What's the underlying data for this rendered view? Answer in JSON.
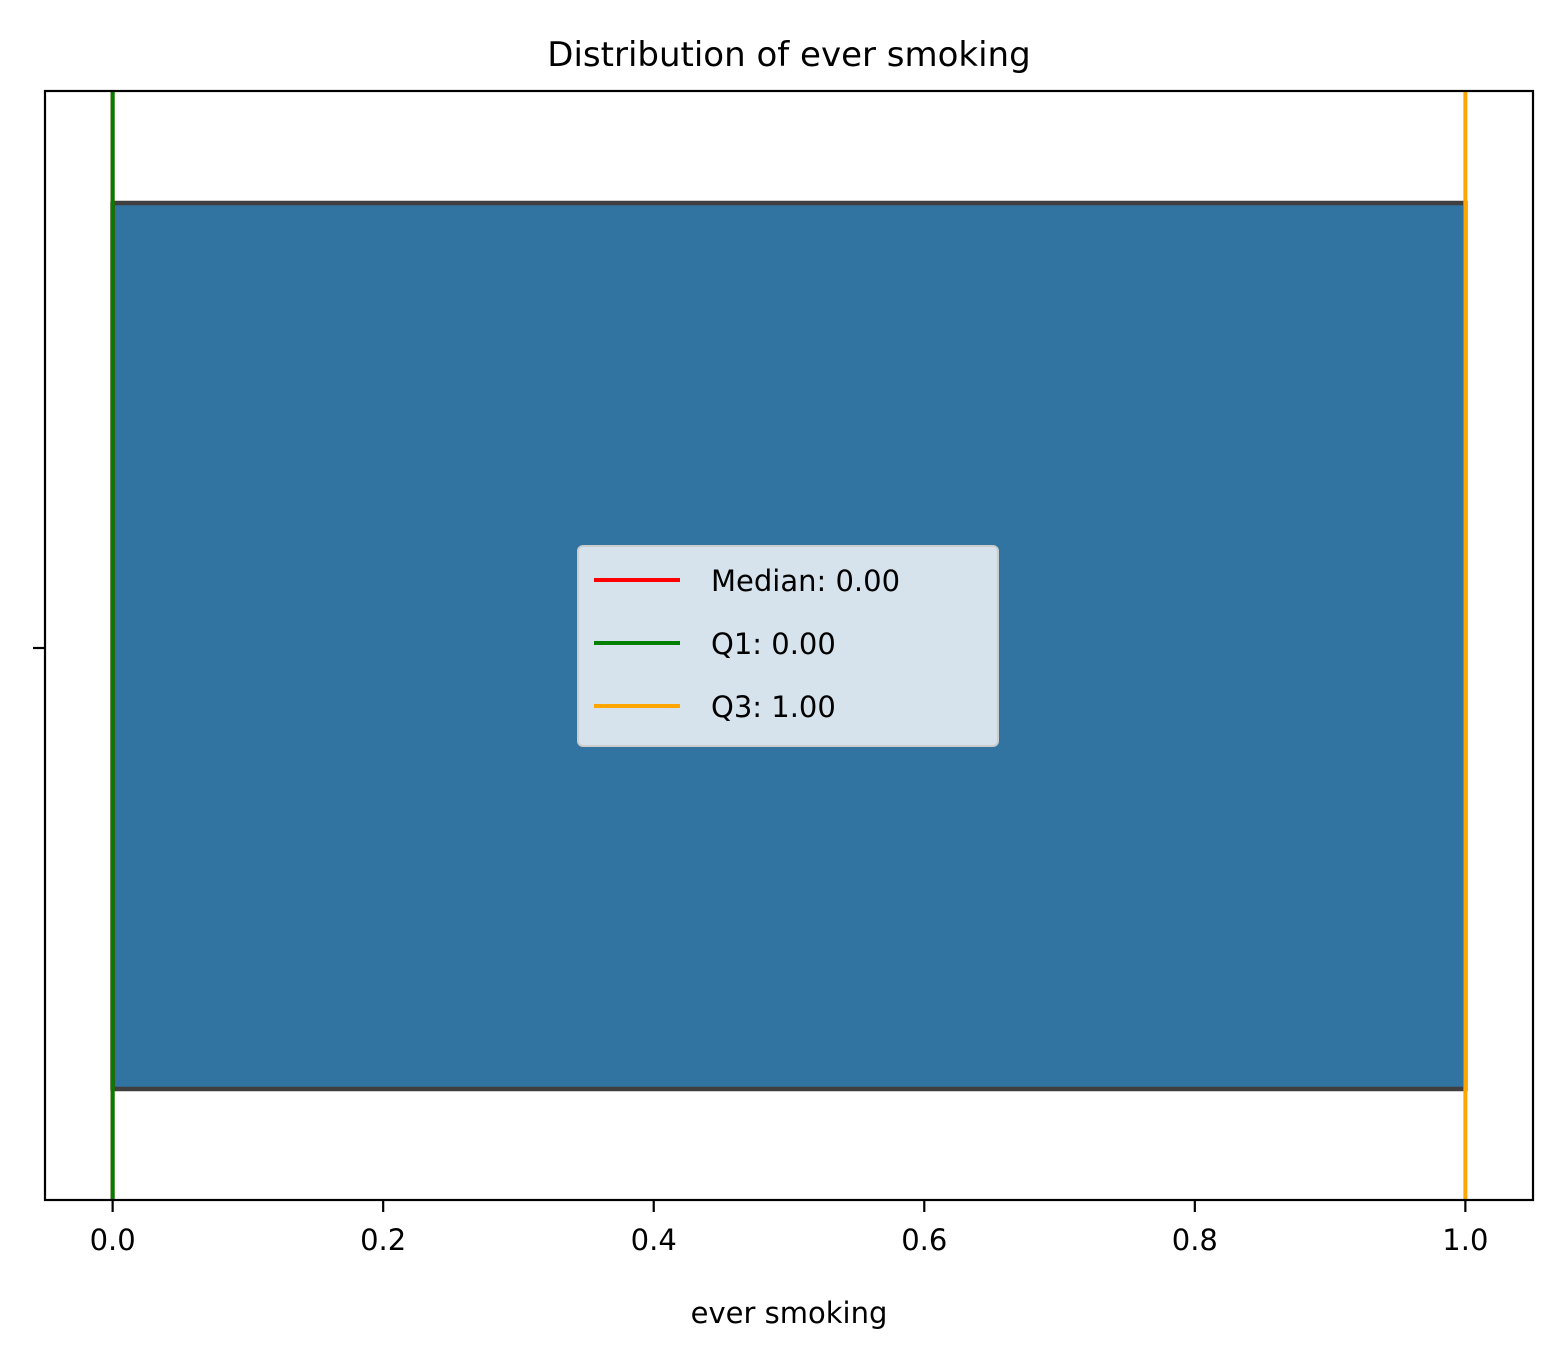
{
  "chart_data": {
    "type": "box",
    "title": "Distribution of ever smoking",
    "xlabel": "ever smoking",
    "ylabel": "",
    "xlim": [
      -0.05,
      1.05
    ],
    "xticks": [
      0.0,
      0.2,
      0.4,
      0.6,
      0.8,
      1.0
    ],
    "xtick_labels": [
      "0.0",
      "0.2",
      "0.4",
      "0.6",
      "0.8",
      "1.0"
    ],
    "box": {
      "q1": 0.0,
      "median": 0.0,
      "q3": 1.0,
      "whisker_low": 0.0,
      "whisker_high": 1.0,
      "fill_color": "#3274a1",
      "edge_color": "#3f3f3f"
    },
    "reference_lines": [
      {
        "label": "Median: 0.00",
        "value": 0.0,
        "color": "#ff0000"
      },
      {
        "label": "Q1: 0.00",
        "value": 0.0,
        "color": "#008000"
      },
      {
        "label": "Q3: 1.00",
        "value": 1.0,
        "color": "#ffa500"
      }
    ],
    "legend_position": "center",
    "grid": false
  }
}
